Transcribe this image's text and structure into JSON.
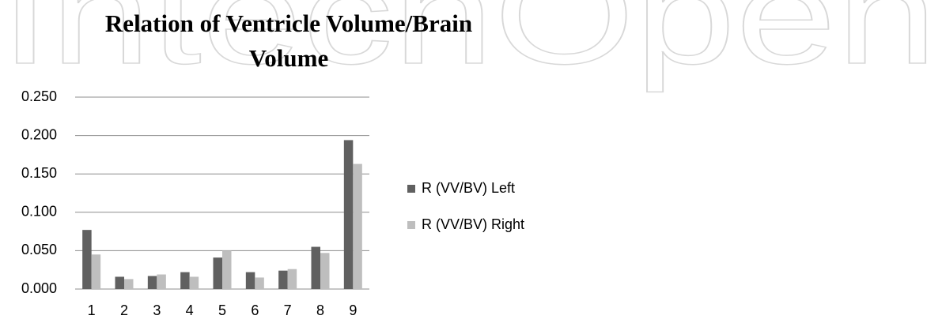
{
  "watermark": "IntechOpen",
  "chart_data": {
    "type": "bar",
    "title": "Relation of Ventricle Volume/Brain Volume",
    "categories": [
      "1",
      "2",
      "3",
      "4",
      "5",
      "6",
      "7",
      "8",
      "9"
    ],
    "series": [
      {
        "name": "R (VV/BV) Left",
        "color": "#606060",
        "values": [
          0.077,
          0.016,
          0.017,
          0.022,
          0.041,
          0.022,
          0.024,
          0.055,
          0.194
        ]
      },
      {
        "name": "R (VV/BV) Right",
        "color": "#bebebe",
        "values": [
          0.045,
          0.013,
          0.019,
          0.016,
          0.05,
          0.015,
          0.026,
          0.047,
          0.163
        ]
      }
    ],
    "ylim": [
      0,
      0.25
    ],
    "yticks": [
      {
        "value": 0,
        "label": "0.000"
      },
      {
        "value": 0.05,
        "label": "0.050"
      },
      {
        "value": 0.1,
        "label": "0.100"
      },
      {
        "value": 0.15,
        "label": "0.150"
      },
      {
        "value": 0.2,
        "label": "0.200"
      },
      {
        "value": 0.25,
        "label": "0.250"
      }
    ],
    "grid": true,
    "legend": "right"
  }
}
